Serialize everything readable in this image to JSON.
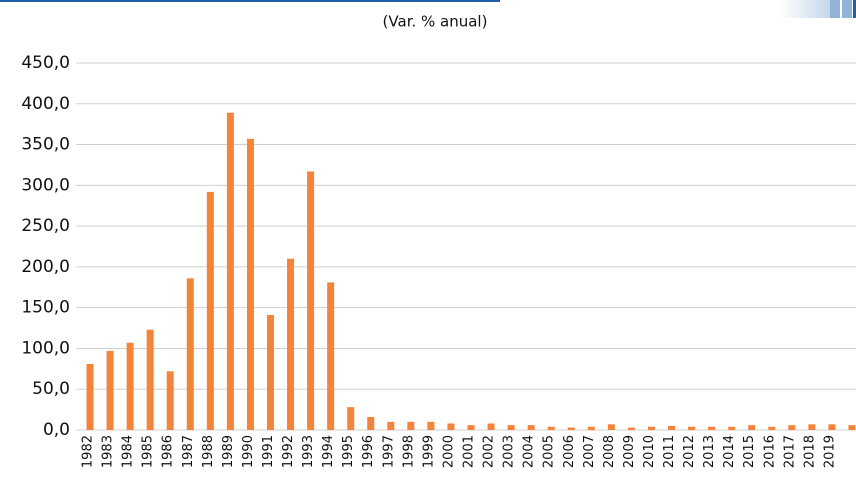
{
  "chart_data": {
    "type": "bar",
    "subtitle": "(Var. % anual)",
    "categories": [
      "1982",
      "1983",
      "1984",
      "1985",
      "1986",
      "1987",
      "1988",
      "1989",
      "1990",
      "1991",
      "1992",
      "1993",
      "1994",
      "1995",
      "1996",
      "1997",
      "1998",
      "1999",
      "2000",
      "2001",
      "2002",
      "2003",
      "2004",
      "2005",
      "2006",
      "2007",
      "2008",
      "2009",
      "2010",
      "2011",
      "2012",
      "2013",
      "2014",
      "2015",
      "2016",
      "2017",
      "2018",
      "2019",
      null
    ],
    "values": [
      81,
      97,
      107,
      123,
      72,
      186,
      292,
      389,
      357,
      141,
      210,
      317,
      181,
      28,
      16,
      10,
      10,
      10,
      8,
      6,
      8,
      6,
      6,
      4,
      3,
      4,
      7,
      3,
      4,
      5,
      4,
      4,
      4,
      6,
      4,
      6,
      7,
      7,
      6
    ],
    "color": "#f5843b",
    "ylim": [
      0,
      450
    ],
    "yticks": [
      {
        "value": 0,
        "label": "0,0"
      },
      {
        "value": 50,
        "label": "50,0"
      },
      {
        "value": 100,
        "label": "100,0"
      },
      {
        "value": 150,
        "label": "150,0"
      },
      {
        "value": 200,
        "label": "200,0"
      },
      {
        "value": 250,
        "label": "250,0"
      },
      {
        "value": 300,
        "label": "300,0"
      },
      {
        "value": 350,
        "label": "350,0"
      },
      {
        "value": 400,
        "label": "400,0"
      },
      {
        "value": 450,
        "label": "450,0"
      }
    ],
    "grid": true
  }
}
